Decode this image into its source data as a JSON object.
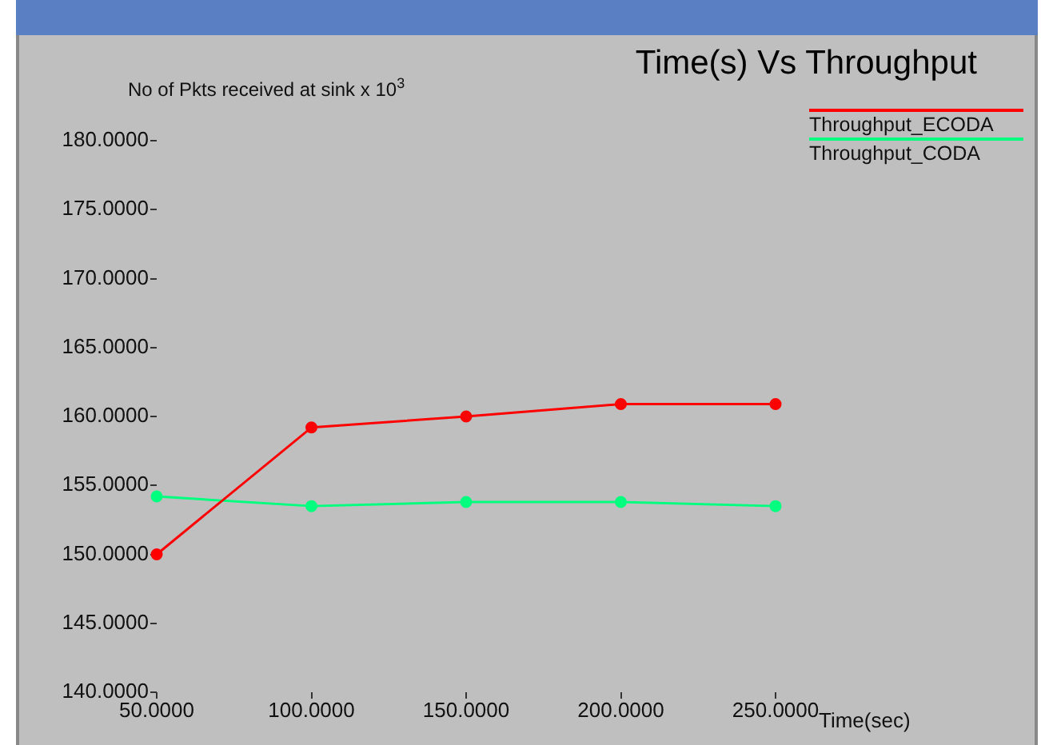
{
  "chart_data": {
    "type": "line",
    "title": "Time(s) Vs Throughput",
    "xlabel": "Time(sec)",
    "ylabel": "No of Pkts received at sink x 10$^{3}$",
    "x": [
      50,
      100,
      150,
      200,
      250
    ],
    "series": [
      {
        "name": "Throughput_ECODA",
        "color": "#ff0000",
        "values": [
          150.0,
          159.2,
          160.0,
          160.9,
          160.9
        ]
      },
      {
        "name": "Throughput_CODA",
        "color": "#00ff7f",
        "values": [
          154.2,
          153.5,
          153.8,
          153.8,
          153.5
        ]
      }
    ],
    "xlim": [
      50,
      250
    ],
    "ylim": [
      140,
      180
    ],
    "xticks": [
      {
        "value": 50,
        "label": "50.0000"
      },
      {
        "value": 100,
        "label": "100.0000"
      },
      {
        "value": 150,
        "label": "150.0000"
      },
      {
        "value": 200,
        "label": "200.0000"
      },
      {
        "value": 250,
        "label": "250.0000"
      }
    ],
    "yticks": [
      {
        "value": 140,
        "label": "140.0000"
      },
      {
        "value": 145,
        "label": "145.0000"
      },
      {
        "value": 150,
        "label": "150.0000"
      },
      {
        "value": 155,
        "label": "155.0000"
      },
      {
        "value": 160,
        "label": "160.0000"
      },
      {
        "value": 165,
        "label": "165.0000"
      },
      {
        "value": 170,
        "label": "170.0000"
      },
      {
        "value": 175,
        "label": "175.0000"
      },
      {
        "value": 180,
        "label": "180.0000"
      }
    ],
    "grid": false,
    "legend": "top right",
    "marker": "circle",
    "line_style": "solid"
  }
}
